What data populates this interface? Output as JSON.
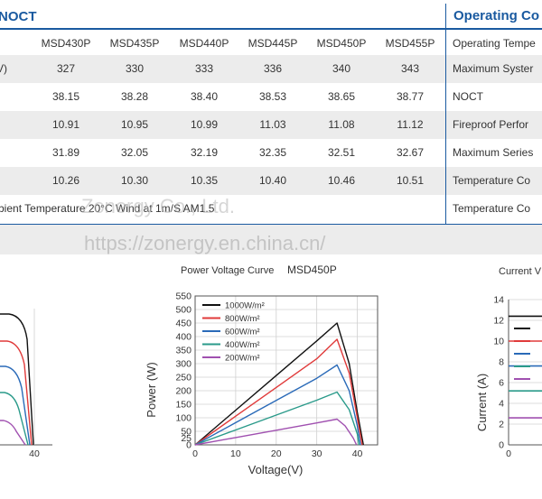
{
  "table": {
    "section_title": "NOCT",
    "columns": [
      "MSD430P",
      "MSD435P",
      "MSD440P",
      "MSD445P",
      "MSD450P",
      "MSD455P"
    ],
    "rows": [
      {
        "label": "V)",
        "values": [
          "327",
          "330",
          "333",
          "336",
          "340",
          "343"
        ]
      },
      {
        "label": "",
        "values": [
          "38.15",
          "38.28",
          "38.40",
          "38.53",
          "38.65",
          "38.77"
        ]
      },
      {
        "label": "",
        "values": [
          "10.91",
          "10.95",
          "10.99",
          "11.03",
          "11.08",
          "11.12"
        ]
      },
      {
        "label": "",
        "values": [
          "31.89",
          "32.05",
          "32.19",
          "32.35",
          "32.51",
          "32.67"
        ]
      },
      {
        "label": "",
        "values": [
          "10.26",
          "10.30",
          "10.35",
          "10.40",
          "10.46",
          "10.51"
        ]
      }
    ],
    "footnote": "bient Temperature 20°C Wind at 1m/S AM1.5"
  },
  "operating": {
    "title": "Operating Co",
    "items": [
      "Operating Tempe",
      "Maximum Syster",
      "NOCT",
      "Fireproof Perfor",
      "Maximum Series",
      "Temperature Co",
      "Temperature Co"
    ]
  },
  "watermarks": {
    "company": "Zonergy Co., Ltd.",
    "url": "https://zonergy.en.china.cn/"
  },
  "chart_data": [
    {
      "type": "line",
      "title": "Power Voltage Curve",
      "subtitle": "MSD450P",
      "xlabel": "Voltage(V)",
      "ylabel": "Power (W)",
      "xlim": [
        0,
        45
      ],
      "ylim": [
        0,
        550
      ],
      "xticks": [
        0,
        10,
        20,
        30,
        40
      ],
      "yticks": [
        0,
        25,
        50,
        100,
        150,
        200,
        250,
        300,
        350,
        400,
        450,
        500,
        550
      ],
      "legend_position": "top-left",
      "series": [
        {
          "name": "1000W/m²",
          "color": "#111111",
          "x": [
            0,
            10,
            20,
            30,
            35,
            38,
            40,
            41.5
          ],
          "y": [
            0,
            128,
            256,
            384,
            450,
            300,
            120,
            0
          ]
        },
        {
          "name": "800W/m²",
          "color": "#e03a3a",
          "x": [
            0,
            10,
            20,
            30,
            35,
            38,
            40,
            41.2
          ],
          "y": [
            0,
            106,
            212,
            318,
            390,
            265,
            100,
            0
          ]
        },
        {
          "name": "600W/m²",
          "color": "#2a6ab8",
          "x": [
            0,
            10,
            20,
            30,
            35,
            38,
            40,
            40.8
          ],
          "y": [
            0,
            82,
            164,
            246,
            295,
            200,
            70,
            0
          ]
        },
        {
          "name": "400W/m²",
          "color": "#2a9a8a",
          "x": [
            0,
            10,
            20,
            30,
            35,
            38,
            40,
            40.4
          ],
          "y": [
            0,
            55,
            110,
            165,
            195,
            130,
            40,
            0
          ]
        },
        {
          "name": "200W/m²",
          "color": "#a050b0",
          "x": [
            0,
            10,
            20,
            30,
            35,
            37,
            39,
            39.8
          ],
          "y": [
            0,
            27,
            54,
            81,
            95,
            70,
            25,
            0
          ]
        }
      ]
    },
    {
      "type": "line",
      "title": "Current V",
      "xlabel": "",
      "ylabel": "Current (A)",
      "ylim": [
        0,
        14
      ],
      "yticks": [
        0,
        2,
        4,
        6,
        8,
        10,
        12,
        14
      ],
      "xticks": [
        0
      ],
      "series": [
        {
          "name": "",
          "color": "#111111",
          "values": [
            12.4
          ]
        },
        {
          "name": "",
          "color": "#e03a3a",
          "values": [
            10
          ]
        },
        {
          "name": "",
          "color": "#2a6ab8",
          "values": [
            7.6
          ]
        },
        {
          "name": "",
          "color": "#2a9a8a",
          "values": [
            5.2
          ]
        },
        {
          "name": "",
          "color": "#a050b0",
          "values": [
            2.6
          ]
        }
      ]
    },
    {
      "type": "line",
      "title": "",
      "xticks": [
        40
      ],
      "series": [
        {
          "name": "",
          "color": "#111111"
        },
        {
          "name": "",
          "color": "#e03a3a"
        },
        {
          "name": "",
          "color": "#2a6ab8"
        },
        {
          "name": "",
          "color": "#2a9a8a"
        },
        {
          "name": "",
          "color": "#a050b0"
        }
      ]
    }
  ]
}
